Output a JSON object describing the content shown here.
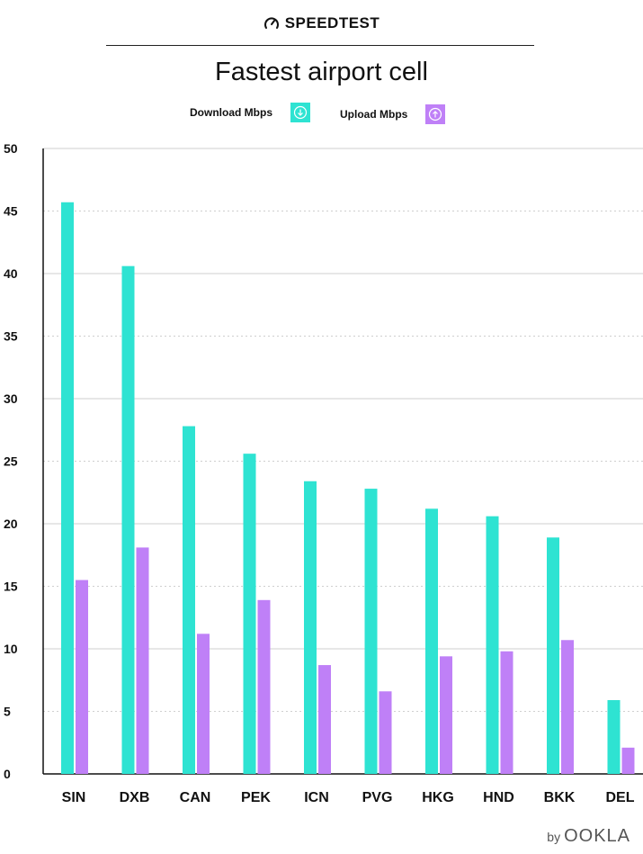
{
  "header": {
    "brand_name": "SPEEDTEST",
    "footer_by": "by",
    "footer_logo": "OOKLA"
  },
  "legend": {
    "download_label": "Download Mbps",
    "upload_label": "Upload Mbps"
  },
  "colors": {
    "download": "#2ee3d2",
    "upload": "#bf80f7",
    "grid": "#cfcfcf",
    "axis": "#111111"
  },
  "chart_data": {
    "type": "bar",
    "title": "Fastest airport cell",
    "xlabel": "",
    "ylabel": "",
    "ylim": [
      0,
      50
    ],
    "yticks": [
      0,
      5,
      10,
      15,
      20,
      25,
      30,
      35,
      40,
      45,
      50
    ],
    "grid": true,
    "legend_position": "top-center",
    "categories": [
      "SIN",
      "DXB",
      "CAN",
      "PEK",
      "ICN",
      "PVG",
      "HKG",
      "HND",
      "BKK",
      "DEL"
    ],
    "series": [
      {
        "name": "Download Mbps",
        "values": [
          45.7,
          40.6,
          27.8,
          25.6,
          23.4,
          22.8,
          21.2,
          20.6,
          18.9,
          5.9
        ]
      },
      {
        "name": "Upload Mbps",
        "values": [
          15.5,
          18.1,
          11.2,
          13.9,
          8.7,
          6.6,
          9.4,
          9.8,
          10.7,
          2.1
        ]
      }
    ]
  }
}
